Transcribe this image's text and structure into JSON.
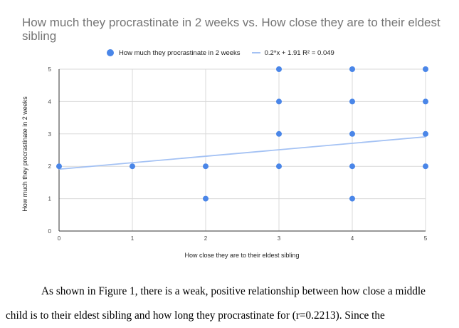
{
  "chart_data": {
    "type": "scatter",
    "title": "How much they procrastinate in 2 weeks vs. How close they are to their eldest sibling",
    "xlabel": "How close they are to their eldest sibling",
    "ylabel": "How much they procrastinate in 2 weeks",
    "xlim": [
      0,
      5
    ],
    "ylim": [
      0,
      5
    ],
    "xticks": [
      "0",
      "1",
      "2",
      "3",
      "4",
      "5"
    ],
    "yticks": [
      "0",
      "1",
      "2",
      "3",
      "4",
      "5"
    ],
    "grid": true,
    "legend_position": "top",
    "series": [
      {
        "name": "How much they procrastinate in 2 weeks",
        "color": "#4a86e8",
        "points": [
          [
            0,
            2
          ],
          [
            1,
            2
          ],
          [
            2,
            2
          ],
          [
            2,
            1
          ],
          [
            3,
            5
          ],
          [
            3,
            4
          ],
          [
            3,
            3
          ],
          [
            3,
            2
          ],
          [
            4,
            5
          ],
          [
            4,
            4
          ],
          [
            4,
            3
          ],
          [
            4,
            2
          ],
          [
            4,
            1
          ],
          [
            5,
            5
          ],
          [
            5,
            4
          ],
          [
            5,
            3
          ],
          [
            5,
            2
          ]
        ]
      }
    ],
    "trendline": {
      "label": "0.2*x + 1.91 R² = 0.049",
      "slope": 0.2,
      "intercept": 1.91,
      "color": "#a4c2f4"
    }
  },
  "text": {
    "line1": "As shown in Figure 1, there is a weak, positive relationship between how close a middle",
    "line2": "child is to their eldest sibling and how long they procrastinate for (r=0.2213). Since the"
  }
}
